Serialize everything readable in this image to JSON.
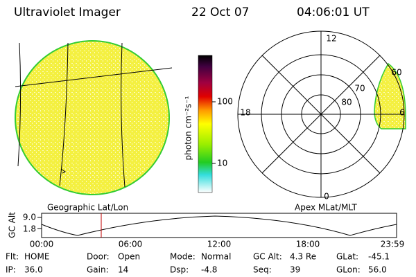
{
  "header": {
    "title": "Ultraviolet Imager",
    "date": "22 Oct 07",
    "time": "04:06:01 UT"
  },
  "colorbar": {
    "label": "photon cm⁻²s⁻¹",
    "ticks": [
      "100",
      "10"
    ]
  },
  "polar": {
    "hours": {
      "top": "12",
      "left": "18",
      "right": "6",
      "bottom": "0"
    },
    "latitudes": [
      "60",
      "70",
      "80"
    ]
  },
  "panel_labels": {
    "left": "Geographic Lat/Lon",
    "right": "Apex MLat/MLT"
  },
  "altitude": {
    "axis_label": "GC Alt",
    "yticks": [
      "9.0",
      "1.8"
    ],
    "xticks": [
      "00:00",
      "06:00",
      "12:00",
      "18:00",
      "23:59"
    ]
  },
  "footer": {
    "rows": [
      [
        {
          "label": "Flt:",
          "value": "HOME"
        },
        {
          "label": "Door:",
          "value": "Open"
        },
        {
          "label": "Mode:",
          "value": "Normal"
        },
        {
          "label": "GC Alt:",
          "value": "4.3 Re"
        },
        {
          "label": "GLat:",
          "value": "-45.1"
        }
      ],
      [
        {
          "label": "IP:",
          "value": "36.0"
        },
        {
          "label": "Gain:",
          "value": "14"
        },
        {
          "label": "Dsp:",
          "value": "-4.8"
        },
        {
          "label": "Seq:",
          "value": "39"
        },
        {
          "label": "GLon:",
          "value": "56.0"
        }
      ]
    ]
  }
}
